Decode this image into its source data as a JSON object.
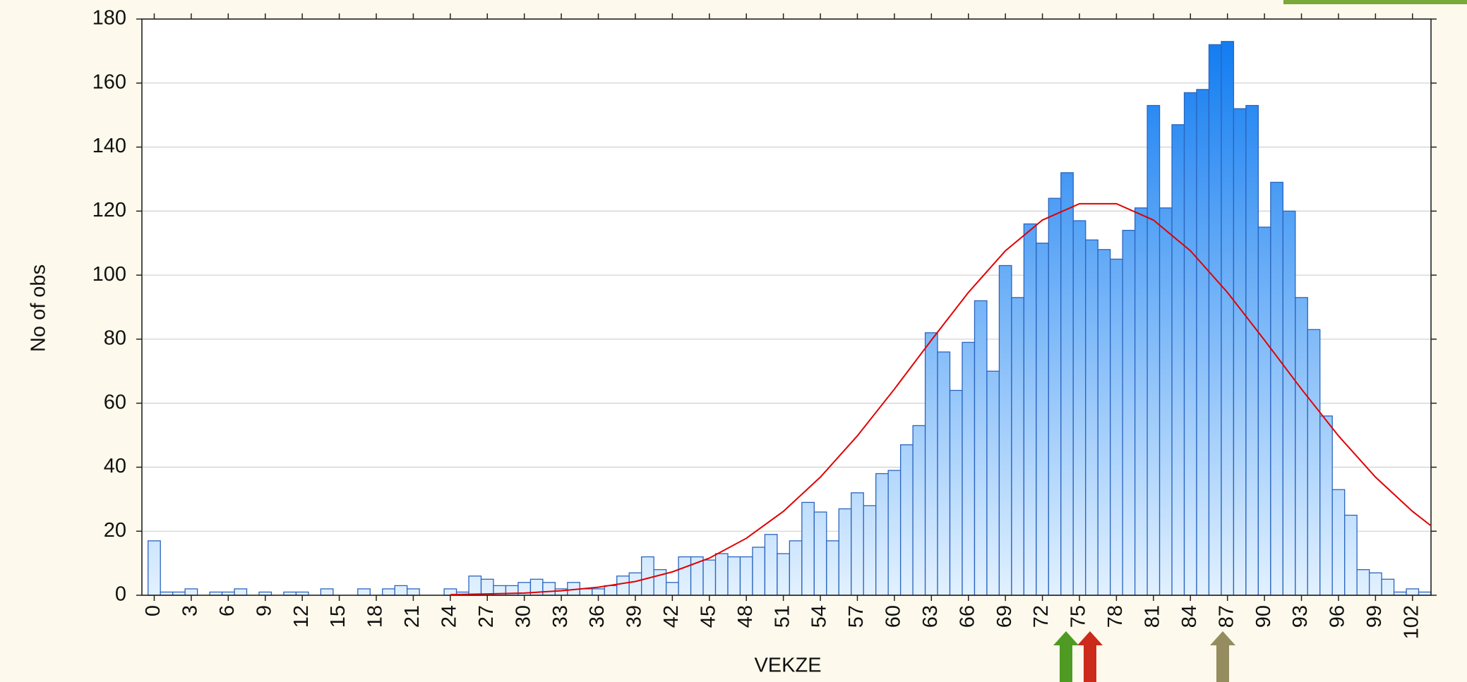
{
  "chart_data": {
    "type": "histogram",
    "xlabel": "VEKZE",
    "ylabel": "No of obs",
    "bins": [
      -0.5,
      0.5,
      1.5,
      2.5,
      3.5,
      4.5,
      5.5,
      6.5,
      7.5,
      8.5,
      9.5,
      10.5,
      11.5,
      12.5,
      13.5,
      14.5,
      15.5,
      16.5,
      17.5,
      18.5,
      19.5,
      20.5,
      21.5,
      22.5,
      23.5,
      24.5,
      25.5,
      26.5,
      27.5,
      28.5,
      29.5,
      30.5,
      31.5,
      32.5,
      33.5,
      34.5,
      35.5,
      36.5,
      37.5,
      38.5,
      39.5,
      40.5,
      41.5,
      42.5,
      43.5,
      44.5,
      45.5,
      46.5,
      47.5,
      48.5,
      49.5,
      50.5,
      51.5,
      52.5,
      53.5,
      54.5,
      55.5,
      56.5,
      57.5,
      58.5,
      59.5,
      60.5,
      61.5,
      62.5,
      63.5,
      64.5,
      65.5,
      66.5,
      67.5,
      68.5,
      69.5,
      70.5,
      71.5,
      72.5,
      73.5,
      74.5,
      75.5,
      76.5,
      77.5,
      78.5,
      79.5,
      80.5,
      81.5,
      82.5,
      83.5,
      84.5,
      85.5,
      86.5,
      87.5,
      88.5,
      89.5,
      90.5,
      91.5,
      92.5,
      93.5,
      94.5,
      95.5,
      96.5,
      97.5,
      98.5,
      99.5,
      100.5,
      101.5,
      102.5,
      103.5
    ],
    "values": [
      17,
      1,
      1,
      2,
      0,
      1,
      1,
      2,
      0,
      1,
      0,
      1,
      1,
      0,
      2,
      0,
      0,
      2,
      0,
      2,
      3,
      2,
      0,
      0,
      2,
      1,
      6,
      5,
      3,
      3,
      4,
      5,
      4,
      2,
      4,
      2,
      2,
      3,
      6,
      7,
      12,
      8,
      4,
      12,
      12,
      11,
      13,
      12,
      12,
      15,
      19,
      13,
      17,
      29,
      26,
      17,
      27,
      32,
      28,
      38,
      39,
      47,
      53,
      82,
      76,
      64,
      79,
      92,
      70,
      103,
      93,
      116,
      110,
      124,
      132,
      117,
      111,
      108,
      105,
      114,
      121,
      153,
      121,
      147,
      157,
      158,
      172,
      173,
      152,
      153,
      115,
      129,
      120,
      93,
      83,
      56,
      33,
      25,
      8,
      7,
      5,
      1,
      2,
      1
    ],
    "gradient": [
      "#e2f1ff",
      "#0a78f0"
    ],
    "edge_color": "#2a64bf",
    "fit_line": {
      "color": "#e00000",
      "x": [
        24,
        27,
        30,
        33,
        36,
        39,
        42,
        45,
        48,
        51,
        54,
        57,
        60,
        63,
        66,
        69,
        72,
        75,
        78,
        81,
        84,
        87,
        90,
        93,
        96,
        99,
        102,
        103.5
      ],
      "values": [
        0.2,
        0.4,
        0.7,
        1.4,
        2.5,
        4.3,
        7.3,
        11.6,
        17.8,
        26.2,
        36.9,
        49.8,
        64.4,
        79.7,
        94.6,
        107.6,
        117.2,
        122.3,
        122.3,
        117.2,
        107.6,
        94.6,
        79.7,
        64.4,
        49.8,
        36.9,
        26.2,
        21.7
      ]
    },
    "xlim": [
      -1,
      103.5
    ],
    "xticks": [
      0,
      3,
      6,
      9,
      12,
      15,
      18,
      21,
      24,
      27,
      30,
      33,
      36,
      39,
      42,
      45,
      48,
      51,
      54,
      57,
      60,
      63,
      66,
      69,
      72,
      75,
      78,
      81,
      84,
      87,
      90,
      93,
      96,
      99,
      102
    ],
    "ylim": [
      0,
      180
    ],
    "yticks": [
      0,
      20,
      40,
      60,
      80,
      100,
      120,
      140,
      160,
      180
    ],
    "grid": true
  }
}
